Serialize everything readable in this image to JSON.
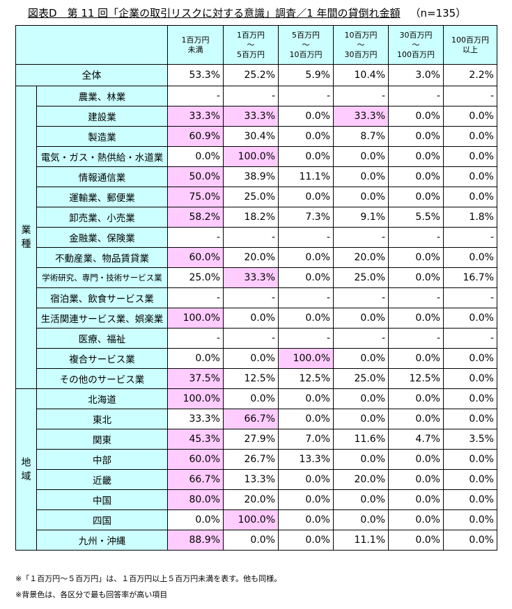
{
  "title": {
    "label": "図表D　第 11 回「企業の取引リスクに対する意識」調査／1 年間の貸倒れ金額",
    "n": "（n=135）"
  },
  "columns": [
    "1百万円\n未満",
    "1百万円\n～\n5百万円",
    "5百万円\n～\n10百万円",
    "10百万円\n～\n30百万円",
    "30百万円\n～\n100百万円",
    "100百万円\n以上"
  ],
  "total": {
    "label": "全体",
    "values": [
      "53.3%",
      "25.2%",
      "5.9%",
      "10.4%",
      "3.0%",
      "2.2%"
    ]
  },
  "highlight_color": "#ffccff",
  "header_color": "#ccffff",
  "groups": [
    {
      "label": "業\n種",
      "rows": [
        {
          "label": "農業、林業",
          "values": [
            "-",
            "-",
            "-",
            "-",
            "-",
            "-"
          ],
          "hl": []
        },
        {
          "label": "建設業",
          "values": [
            "33.3%",
            "33.3%",
            "0.0%",
            "33.3%",
            "0.0%",
            "0.0%"
          ],
          "hl": [
            0,
            1,
            3
          ]
        },
        {
          "label": "製造業",
          "values": [
            "60.9%",
            "30.4%",
            "0.0%",
            "8.7%",
            "0.0%",
            "0.0%"
          ],
          "hl": [
            0
          ]
        },
        {
          "label": "電気・ガス・熱供給・水道業",
          "values": [
            "0.0%",
            "100.0%",
            "0.0%",
            "0.0%",
            "0.0%",
            "0.0%"
          ],
          "hl": [
            1
          ]
        },
        {
          "label": "情報通信業",
          "values": [
            "50.0%",
            "38.9%",
            "11.1%",
            "0.0%",
            "0.0%",
            "0.0%"
          ],
          "hl": [
            0
          ]
        },
        {
          "label": "運輸業、郵便業",
          "values": [
            "75.0%",
            "25.0%",
            "0.0%",
            "0.0%",
            "0.0%",
            "0.0%"
          ],
          "hl": [
            0
          ]
        },
        {
          "label": "卸売業、小売業",
          "values": [
            "58.2%",
            "18.2%",
            "7.3%",
            "9.1%",
            "5.5%",
            "1.8%"
          ],
          "hl": [
            0
          ]
        },
        {
          "label": "金融業、保険業",
          "values": [
            "-",
            "-",
            "-",
            "-",
            "-",
            "-"
          ],
          "hl": []
        },
        {
          "label": "不動産業、物品賃貸業",
          "values": [
            "60.0%",
            "20.0%",
            "0.0%",
            "20.0%",
            "0.0%",
            "0.0%"
          ],
          "hl": [
            0
          ]
        },
        {
          "label": "学術研究、専門・技術サービス業",
          "values": [
            "25.0%",
            "33.3%",
            "0.0%",
            "25.0%",
            "0.0%",
            "16.7%"
          ],
          "hl": [
            1
          ],
          "small": true
        },
        {
          "label": "宿泊業、飲食サービス業",
          "values": [
            "-",
            "-",
            "-",
            "-",
            "-",
            "-"
          ],
          "hl": []
        },
        {
          "label": "生活関連サービス業、娯楽業",
          "values": [
            "100.0%",
            "0.0%",
            "0.0%",
            "0.0%",
            "0.0%",
            "0.0%"
          ],
          "hl": [
            0
          ]
        },
        {
          "label": "医療、福祉",
          "values": [
            "-",
            "-",
            "-",
            "-",
            "-",
            "-"
          ],
          "hl": []
        },
        {
          "label": "複合サービス業",
          "values": [
            "0.0%",
            "0.0%",
            "100.0%",
            "0.0%",
            "0.0%",
            "0.0%"
          ],
          "hl": [
            2
          ]
        },
        {
          "label": "その他のサービス業",
          "values": [
            "37.5%",
            "12.5%",
            "12.5%",
            "25.0%",
            "12.5%",
            "0.0%"
          ],
          "hl": [
            0
          ]
        }
      ]
    },
    {
      "label": "地\n域",
      "rows": [
        {
          "label": "北海道",
          "values": [
            "100.0%",
            "0.0%",
            "0.0%",
            "0.0%",
            "0.0%",
            "0.0%"
          ],
          "hl": [
            0
          ]
        },
        {
          "label": "東北",
          "values": [
            "33.3%",
            "66.7%",
            "0.0%",
            "0.0%",
            "0.0%",
            "0.0%"
          ],
          "hl": [
            1
          ]
        },
        {
          "label": "関東",
          "values": [
            "45.3%",
            "27.9%",
            "7.0%",
            "11.6%",
            "4.7%",
            "3.5%"
          ],
          "hl": [
            0
          ]
        },
        {
          "label": "中部",
          "values": [
            "60.0%",
            "26.7%",
            "13.3%",
            "0.0%",
            "0.0%",
            "0.0%"
          ],
          "hl": [
            0
          ]
        },
        {
          "label": "近畿",
          "values": [
            "66.7%",
            "13.3%",
            "0.0%",
            "20.0%",
            "0.0%",
            "0.0%"
          ],
          "hl": [
            0
          ]
        },
        {
          "label": "中国",
          "values": [
            "80.0%",
            "20.0%",
            "0.0%",
            "0.0%",
            "0.0%",
            "0.0%"
          ],
          "hl": [
            0
          ]
        },
        {
          "label": "四国",
          "values": [
            "0.0%",
            "100.0%",
            "0.0%",
            "0.0%",
            "0.0%",
            "0.0%"
          ],
          "hl": [
            1
          ]
        },
        {
          "label": "九州・沖縄",
          "values": [
            "88.9%",
            "0.0%",
            "0.0%",
            "11.1%",
            "0.0%",
            "0.0%"
          ],
          "hl": [
            0
          ]
        }
      ]
    }
  ],
  "notes": [
    "※「１百万円～５百万円」は、１百万円以上５百万円未満を表す。他も同様。",
    "※背景色は、各区分で最も回答率が高い項目"
  ]
}
